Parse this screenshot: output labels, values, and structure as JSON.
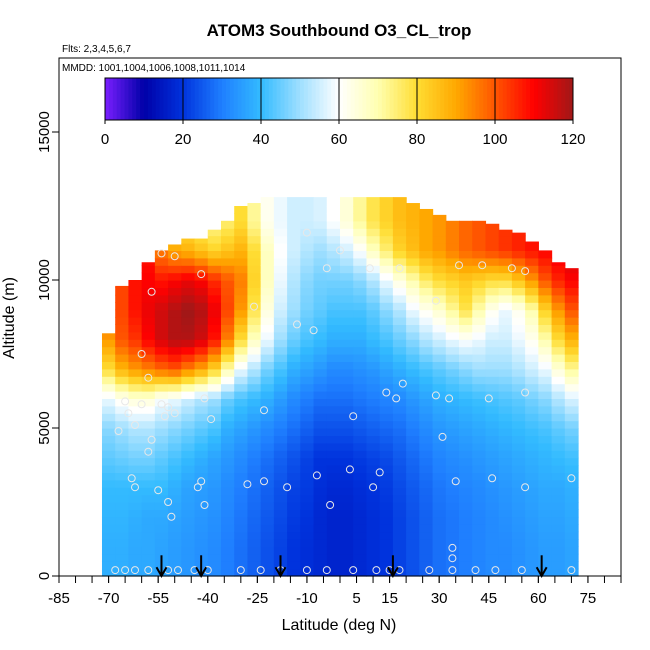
{
  "chart_data": {
    "type": "heatmap",
    "title": "ATOM3 Southbound O3_CL_trop",
    "subtitle_flights": "Flts: 2,3,4,5,6,7",
    "subtitle_dates": "MMDD: 1001,1004,1006,1008,1011,1014",
    "xlabel": "Latitude (deg N)",
    "ylabel": "Altitude (m)",
    "xlim": [
      -85,
      85
    ],
    "ylim": [
      0,
      17500
    ],
    "x_tick_labels": [
      "-85",
      "-70",
      "-55",
      "-40",
      "-25",
      "-10",
      "5",
      "15",
      "30",
      "45",
      "60",
      "75"
    ],
    "x_ticks": [
      -85,
      -70,
      -55,
      -40,
      -25,
      -10,
      5,
      15,
      30,
      45,
      60,
      75
    ],
    "y_tick_labels": [
      "0",
      "5000",
      "10000",
      "15000"
    ],
    "y_ticks": [
      0,
      5000,
      10000,
      15000
    ],
    "colorbar": {
      "min": 0,
      "max": 120,
      "tick_labels": [
        "0",
        "20",
        "40",
        "60",
        "80",
        "100",
        "120"
      ],
      "ticks": [
        0,
        20,
        40,
        60,
        80,
        100,
        120
      ],
      "colors": [
        "#7a1fff",
        "#0000a8",
        "#0033dd",
        "#1f7fff",
        "#33bbff",
        "#9fdfff",
        "#ffffff",
        "#ffffb0",
        "#ffdd33",
        "#ffa800",
        "#ff5500",
        "#ff0000",
        "#a01818"
      ]
    },
    "field": {
      "lat_columns": [
        -70,
        -66,
        -62,
        -58,
        -54,
        -50,
        -46,
        -42,
        -38,
        -34,
        -30,
        -26,
        -22,
        -18,
        -14,
        -10,
        -6,
        -2,
        2,
        6,
        10,
        14,
        18,
        22,
        26,
        30,
        34,
        38,
        42,
        46,
        50,
        54,
        58,
        62,
        66,
        70
      ],
      "top_altitude_m": [
        8200,
        9800,
        10000,
        10600,
        11000,
        11200,
        11400,
        11400,
        11700,
        12000,
        12500,
        12600,
        12800,
        12800,
        12800,
        12800,
        12800,
        12800,
        12800,
        12800,
        12800,
        12800,
        12800,
        12600,
        12400,
        12200,
        12000,
        12000,
        12000,
        11900,
        11700,
        11600,
        11300,
        11000,
        10600,
        10400
      ],
      "levels_m": [
        0,
        1000,
        2000,
        3000,
        4000,
        5000,
        6000,
        7000,
        8000,
        9000,
        10000,
        11000,
        12000,
        13000
      ],
      "o3_ppbv": [
        [
          38,
          38,
          39,
          40,
          44,
          48,
          58,
          80,
          92,
          95,
          95,
          95,
          95,
          95
        ],
        [
          38,
          38,
          39,
          40,
          45,
          50,
          62,
          88,
          100,
          102,
          102,
          102,
          102,
          102
        ],
        [
          37,
          37,
          38,
          40,
          46,
          52,
          65,
          92,
          104,
          108,
          108,
          108,
          108,
          108
        ],
        [
          37,
          37,
          37,
          40,
          46,
          52,
          65,
          95,
          110,
          112,
          110,
          108,
          105,
          105
        ],
        [
          36,
          36,
          37,
          40,
          44,
          50,
          60,
          98,
          115,
          115,
          108,
          95,
          90,
          90
        ],
        [
          35,
          35,
          36,
          38,
          42,
          48,
          58,
          100,
          118,
          118,
          110,
          90,
          80,
          80
        ],
        [
          34,
          34,
          35,
          36,
          40,
          46,
          55,
          95,
          118,
          120,
          112,
          88,
          78,
          78
        ],
        [
          33,
          33,
          34,
          35,
          38,
          44,
          52,
          90,
          115,
          118,
          110,
          85,
          75,
          75
        ],
        [
          32,
          32,
          33,
          34,
          36,
          42,
          50,
          82,
          108,
          112,
          105,
          82,
          72,
          72
        ],
        [
          30,
          30,
          31,
          32,
          34,
          38,
          45,
          70,
          95,
          102,
          100,
          85,
          75,
          75
        ],
        [
          28,
          28,
          29,
          30,
          32,
          36,
          42,
          58,
          80,
          92,
          95,
          88,
          80,
          80
        ],
        [
          26,
          26,
          27,
          28,
          30,
          34,
          40,
          52,
          68,
          78,
          82,
          80,
          72,
          72
        ],
        [
          24,
          24,
          25,
          26,
          28,
          32,
          38,
          46,
          58,
          64,
          68,
          68,
          62,
          62
        ],
        [
          22,
          22,
          23,
          24,
          26,
          30,
          35,
          42,
          50,
          55,
          58,
          60,
          58,
          58
        ],
        [
          20,
          20,
          21,
          22,
          24,
          28,
          32,
          38,
          45,
          50,
          52,
          55,
          55,
          55
        ],
        [
          19,
          19,
          20,
          21,
          22,
          26,
          30,
          36,
          42,
          46,
          48,
          52,
          55,
          55
        ],
        [
          18,
          18,
          18,
          19,
          20,
          24,
          28,
          34,
          40,
          44,
          46,
          50,
          56,
          56
        ],
        [
          17,
          17,
          17,
          18,
          20,
          24,
          28,
          32,
          38,
          42,
          46,
          52,
          60,
          60
        ],
        [
          17,
          17,
          17,
          18,
          20,
          24,
          28,
          32,
          38,
          42,
          46,
          55,
          65,
          65
        ],
        [
          18,
          18,
          18,
          19,
          21,
          25,
          29,
          33,
          38,
          42,
          48,
          60,
          72,
          72
        ],
        [
          19,
          19,
          19,
          20,
          22,
          26,
          30,
          34,
          40,
          44,
          52,
          68,
          78,
          78
        ],
        [
          20,
          20,
          20,
          21,
          23,
          27,
          31,
          36,
          42,
          48,
          58,
          75,
          82,
          82
        ],
        [
          22,
          22,
          22,
          23,
          25,
          28,
          32,
          38,
          45,
          52,
          64,
          82,
          86,
          86
        ],
        [
          24,
          24,
          24,
          25,
          27,
          30,
          34,
          40,
          48,
          58,
          70,
          86,
          88,
          88
        ],
        [
          26,
          26,
          26,
          27,
          29,
          32,
          36,
          42,
          52,
          62,
          76,
          90,
          90,
          90
        ],
        [
          28,
          28,
          28,
          29,
          31,
          34,
          38,
          44,
          55,
          66,
          80,
          92,
          92,
          92
        ],
        [
          29,
          29,
          29,
          30,
          32,
          35,
          39,
          46,
          58,
          72,
          82,
          95,
          95,
          95
        ],
        [
          30,
          30,
          30,
          31,
          33,
          36,
          40,
          48,
          60,
          78,
          84,
          98,
          98,
          98
        ],
        [
          31,
          31,
          31,
          32,
          34,
          37,
          41,
          50,
          58,
          70,
          82,
          100,
          100,
          100
        ],
        [
          32,
          32,
          32,
          33,
          35,
          38,
          42,
          50,
          55,
          62,
          80,
          102,
          102,
          102
        ],
        [
          32,
          32,
          33,
          34,
          36,
          39,
          43,
          50,
          55,
          58,
          80,
          104,
          104,
          104
        ],
        [
          33,
          33,
          34,
          35,
          37,
          40,
          44,
          52,
          58,
          62,
          85,
          106,
          106,
          106
        ],
        [
          34,
          34,
          35,
          36,
          38,
          41,
          46,
          55,
          62,
          70,
          92,
          108,
          108,
          108
        ],
        [
          35,
          35,
          36,
          37,
          39,
          42,
          48,
          58,
          70,
          82,
          100,
          110,
          110,
          110
        ],
        [
          35,
          35,
          36,
          37,
          40,
          44,
          52,
          65,
          80,
          92,
          106,
          112,
          112,
          112
        ],
        [
          36,
          36,
          37,
          38,
          41,
          46,
          56,
          72,
          88,
          100,
          110,
          115,
          115,
          115
        ]
      ]
    },
    "profile_arrows_lat": [
      -54,
      -42,
      -18,
      16,
      61
    ],
    "observation_points": [
      {
        "lat": -68,
        "alt": 200
      },
      {
        "lat": -65,
        "alt": 200
      },
      {
        "lat": -62,
        "alt": 200
      },
      {
        "lat": -58,
        "alt": 200
      },
      {
        "lat": -52,
        "alt": 200
      },
      {
        "lat": -49,
        "alt": 200
      },
      {
        "lat": -44,
        "alt": 200
      },
      {
        "lat": -40,
        "alt": 200
      },
      {
        "lat": -30,
        "alt": 200
      },
      {
        "lat": -24,
        "alt": 200
      },
      {
        "lat": -18,
        "alt": 200
      },
      {
        "lat": -10,
        "alt": 200
      },
      {
        "lat": -4,
        "alt": 200
      },
      {
        "lat": 4,
        "alt": 200
      },
      {
        "lat": 11,
        "alt": 200
      },
      {
        "lat": 15,
        "alt": 200
      },
      {
        "lat": 18,
        "alt": 200
      },
      {
        "lat": 27,
        "alt": 200
      },
      {
        "lat": 34,
        "alt": 200
      },
      {
        "lat": 41,
        "alt": 200
      },
      {
        "lat": 47,
        "alt": 200
      },
      {
        "lat": 55,
        "alt": 200
      },
      {
        "lat": 70,
        "alt": 200
      },
      {
        "lat": 34,
        "alt": 600
      },
      {
        "lat": 34,
        "alt": 950
      },
      {
        "lat": -51,
        "alt": 2000
      },
      {
        "lat": -52,
        "alt": 2500
      },
      {
        "lat": -41,
        "alt": 2400
      },
      {
        "lat": -55,
        "alt": 2900
      },
      {
        "lat": -43,
        "alt": 3000
      },
      {
        "lat": -42,
        "alt": 3200
      },
      {
        "lat": -63,
        "alt": 3300
      },
      {
        "lat": -62,
        "alt": 3000
      },
      {
        "lat": -28,
        "alt": 3100
      },
      {
        "lat": -23,
        "alt": 3200
      },
      {
        "lat": -16,
        "alt": 3000
      },
      {
        "lat": -7,
        "alt": 3400
      },
      {
        "lat": -3,
        "alt": 2400
      },
      {
        "lat": 3,
        "alt": 3600
      },
      {
        "lat": 10,
        "alt": 3000
      },
      {
        "lat": 12,
        "alt": 3500
      },
      {
        "lat": 35,
        "alt": 3200
      },
      {
        "lat": 46,
        "alt": 3300
      },
      {
        "lat": 56,
        "alt": 3000
      },
      {
        "lat": 70,
        "alt": 3300
      },
      {
        "lat": -58,
        "alt": 4200
      },
      {
        "lat": -57,
        "alt": 4600
      },
      {
        "lat": -67,
        "alt": 4900
      },
      {
        "lat": -62,
        "alt": 5100
      },
      {
        "lat": -64,
        "alt": 5500
      },
      {
        "lat": -60,
        "alt": 5800
      },
      {
        "lat": -65,
        "alt": 5900
      },
      {
        "lat": -53,
        "alt": 5400
      },
      {
        "lat": -50,
        "alt": 5500
      },
      {
        "lat": -54,
        "alt": 5800
      },
      {
        "lat": -39,
        "alt": 5300
      },
      {
        "lat": -41,
        "alt": 6000
      },
      {
        "lat": -52,
        "alt": 5700
      },
      {
        "lat": -23,
        "alt": 5600
      },
      {
        "lat": 4,
        "alt": 5400
      },
      {
        "lat": 31,
        "alt": 4700
      },
      {
        "lat": 14,
        "alt": 6200
      },
      {
        "lat": 17,
        "alt": 6000
      },
      {
        "lat": 19,
        "alt": 6500
      },
      {
        "lat": 29,
        "alt": 6100
      },
      {
        "lat": 33,
        "alt": 6000
      },
      {
        "lat": 45,
        "alt": 6000
      },
      {
        "lat": 56,
        "alt": 6200
      },
      {
        "lat": -58,
        "alt": 6700
      },
      {
        "lat": -60,
        "alt": 7500
      },
      {
        "lat": -13,
        "alt": 8500
      },
      {
        "lat": -8,
        "alt": 8300
      },
      {
        "lat": -26,
        "alt": 9100
      },
      {
        "lat": 29,
        "alt": 9300
      },
      {
        "lat": -10,
        "alt": 11600
      },
      {
        "lat": 0,
        "alt": 11000
      },
      {
        "lat": -4,
        "alt": 10400
      },
      {
        "lat": 9,
        "alt": 10400
      },
      {
        "lat": 18,
        "alt": 10400
      },
      {
        "lat": 36,
        "alt": 10500
      },
      {
        "lat": 43,
        "alt": 10500
      },
      {
        "lat": 52,
        "alt": 10400
      },
      {
        "lat": 56,
        "alt": 10300
      },
      {
        "lat": -57,
        "alt": 9600
      },
      {
        "lat": -42,
        "alt": 10200
      },
      {
        "lat": -50,
        "alt": 10800
      },
      {
        "lat": -54,
        "alt": 10900
      }
    ]
  }
}
